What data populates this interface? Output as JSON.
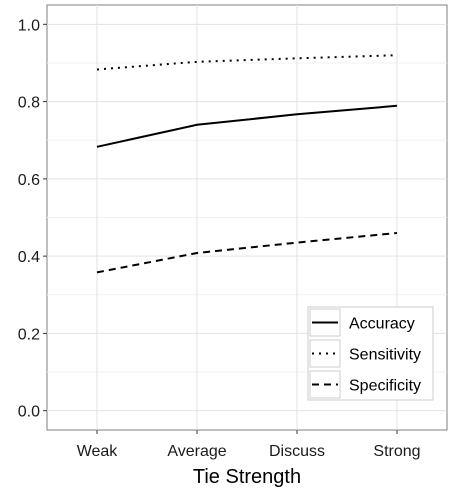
{
  "chart_data": {
    "type": "line",
    "title": "",
    "xlabel": "Tie Strength",
    "ylabel": "",
    "categories": [
      "Weak",
      "Average",
      "Discuss",
      "Strong"
    ],
    "ylim": [
      -0.05,
      1.05
    ],
    "yticks": [
      0.0,
      0.2,
      0.4,
      0.6,
      0.8,
      1.0
    ],
    "ytick_labels": [
      "0.0",
      "0.2",
      "0.4",
      "0.6",
      "0.8",
      "1.0"
    ],
    "grid": true,
    "legend_position": "bottom-right",
    "series": [
      {
        "name": "Accuracy",
        "values": [
          0.683,
          0.74,
          0.767,
          0.789
        ],
        "dash": "solid",
        "color": "#000000"
      },
      {
        "name": "Sensitivity",
        "values": [
          0.883,
          0.903,
          0.912,
          0.92
        ],
        "dash": "dotted",
        "color": "#000000"
      },
      {
        "name": "Specificity",
        "values": [
          0.358,
          0.408,
          0.435,
          0.46
        ],
        "dash": "dashed",
        "color": "#000000"
      }
    ]
  }
}
